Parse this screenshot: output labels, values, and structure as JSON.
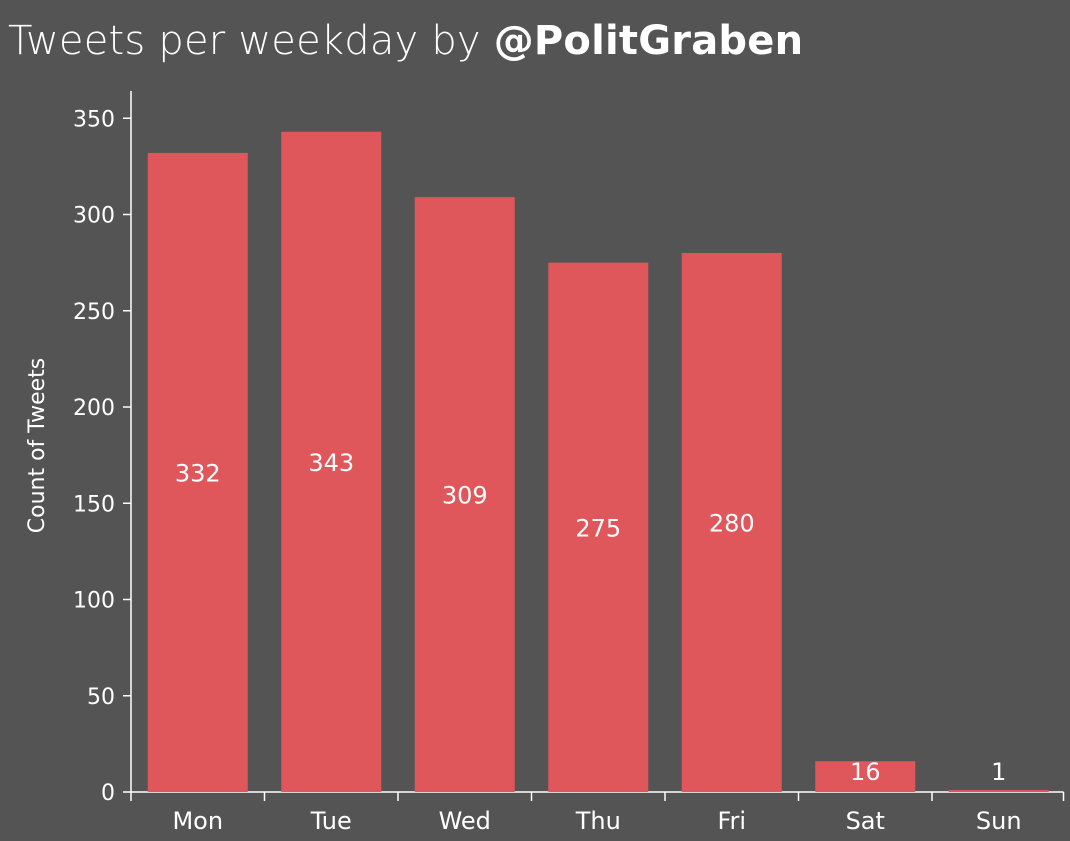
{
  "title": {
    "prefix": "Tweets per weekday by ",
    "handle": "@PolitGraben"
  },
  "colors": {
    "background": "#545454",
    "bar": "#e0575b",
    "axis": "#ffffff"
  },
  "chart_data": {
    "type": "bar",
    "title": "Tweets per weekday by @PolitGraben",
    "xlabel": "",
    "ylabel": "Count of Tweets",
    "categories": [
      "Mon",
      "Tue",
      "Wed",
      "Thu",
      "Fri",
      "Sat",
      "Sun"
    ],
    "values": [
      332,
      343,
      309,
      275,
      280,
      16,
      1
    ],
    "data_labels": [
      "332",
      "343",
      "309",
      "275",
      "280",
      "16",
      "1"
    ],
    "ylim": [
      0,
      360
    ],
    "yticks": [
      0,
      50,
      100,
      150,
      200,
      250,
      300,
      350
    ],
    "grid": false,
    "legend": "none"
  }
}
